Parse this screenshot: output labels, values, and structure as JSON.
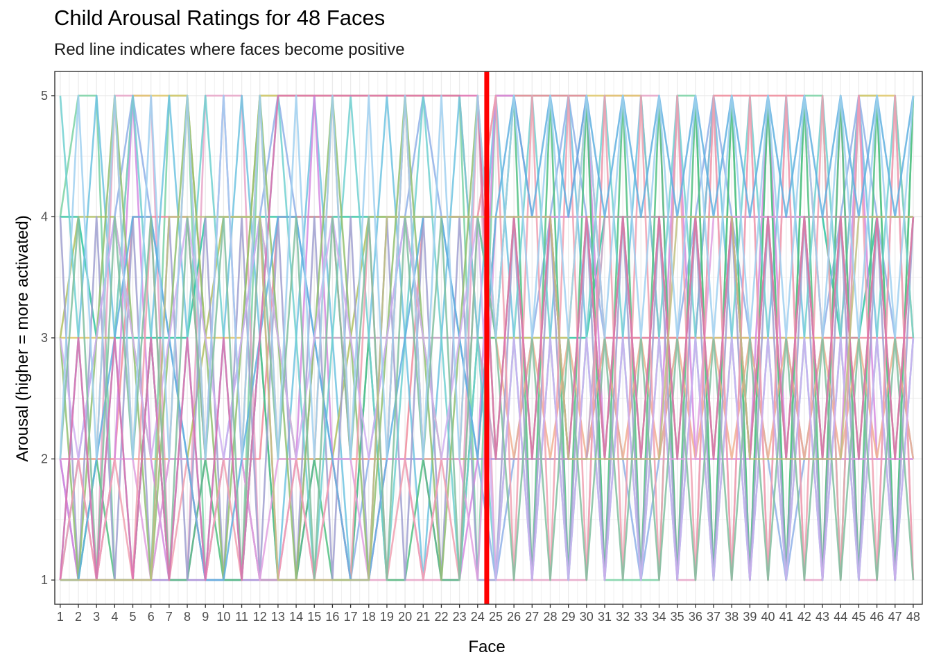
{
  "chart_data": {
    "type": "line",
    "title": "Child Arousal Ratings for 48 Faces",
    "subtitle": "Red line indicates where faces become positive",
    "xlabel": "Face",
    "ylabel": "Arousal (higher = more activated)",
    "x": [
      1,
      2,
      3,
      4,
      5,
      6,
      7,
      8,
      9,
      10,
      11,
      12,
      13,
      14,
      15,
      16,
      17,
      18,
      19,
      20,
      21,
      22,
      23,
      24,
      25,
      26,
      27,
      28,
      29,
      30,
      31,
      32,
      33,
      34,
      35,
      36,
      37,
      38,
      39,
      40,
      41,
      42,
      43,
      44,
      45,
      46,
      47,
      48
    ],
    "x_tick_labels": [
      "1",
      "2",
      "3",
      "4",
      "5",
      "6",
      "7",
      "8",
      "9",
      "10",
      "11",
      "12",
      "13",
      "14",
      "15",
      "16",
      "17",
      "18",
      "19",
      "20",
      "21",
      "22",
      "23",
      "24",
      "25",
      "26",
      "27",
      "28",
      "29",
      "30",
      "31",
      "32",
      "33",
      "34",
      "35",
      "36",
      "37",
      "38",
      "39",
      "40",
      "41",
      "42",
      "43",
      "44",
      "45",
      "46",
      "47",
      "48"
    ],
    "y_ticks": [
      1,
      2,
      3,
      4,
      5
    ],
    "xlim": [
      0.7,
      48.5
    ],
    "ylim": [
      0.8,
      5.2
    ],
    "grid": true,
    "legend": "none",
    "reference_line": {
      "x": 24.5,
      "color": "#ff0000"
    },
    "series_colors": [
      "#7ad2a5",
      "#e8a5c8",
      "#2ec4a0",
      "#a58ad6",
      "#e0c86a",
      "#8fb0e8",
      "#f08a9a",
      "#6ec3e0",
      "#b0c060",
      "#d58ae0",
      "#50c080",
      "#f0b090",
      "#a0a0d0",
      "#c0a0c0",
      "#70d0d0",
      "#e0a0e0",
      "#90c070",
      "#f0a0b0",
      "#60b0e0",
      "#d0b0f0",
      "#80c0a0",
      "#e070b0",
      "#c0c080",
      "#a0d0f0"
    ],
    "series": [
      {
        "values": [
          4,
          5,
          5,
          1,
          1,
          1,
          5,
          5,
          1,
          1,
          1,
          5,
          5,
          5,
          5,
          5,
          5,
          5,
          5,
          5,
          5,
          5,
          5,
          1,
          5,
          5,
          5,
          5,
          5,
          5,
          1,
          1,
          1,
          1,
          5,
          5,
          1,
          5,
          1,
          5,
          1,
          5,
          5,
          1,
          5,
          5,
          1,
          5
        ]
      },
      {
        "values": [
          1,
          1,
          1,
          5,
          5,
          5,
          1,
          1,
          5,
          5,
          5,
          1,
          1,
          1,
          1,
          1,
          1,
          1,
          1,
          1,
          1,
          1,
          1,
          5,
          1,
          1,
          1,
          1,
          1,
          1,
          5,
          5,
          5,
          5,
          1,
          1,
          5,
          1,
          5,
          1,
          5,
          1,
          1,
          5,
          1,
          1,
          5,
          1
        ]
      },
      {
        "values": [
          4,
          4,
          3,
          3,
          3,
          3,
          3,
          3,
          4,
          4,
          4,
          4,
          4,
          4,
          4,
          4,
          4,
          4,
          4,
          4,
          4,
          4,
          4,
          4,
          3,
          3,
          3,
          3,
          3,
          3,
          4,
          4,
          4,
          4,
          4,
          4,
          4,
          4,
          4,
          4,
          4,
          4,
          4,
          3,
          3,
          4,
          4,
          4
        ]
      },
      {
        "values": [
          2,
          1,
          1,
          1,
          1,
          1,
          1,
          1,
          1,
          1,
          1,
          1,
          1,
          1,
          2,
          2,
          2,
          2,
          2,
          2,
          2,
          2,
          2,
          2,
          2,
          2,
          2,
          2,
          2,
          2,
          3,
          3,
          3,
          3,
          3,
          3,
          3,
          3,
          3,
          3,
          3,
          2,
          2,
          2,
          2,
          2,
          2,
          2
        ]
      },
      {
        "values": [
          3,
          3,
          3,
          3,
          5,
          5,
          5,
          5,
          3,
          3,
          3,
          5,
          5,
          5,
          5,
          5,
          5,
          5,
          5,
          5,
          5,
          5,
          5,
          3,
          3,
          3,
          3,
          3,
          3,
          5,
          5,
          5,
          5,
          3,
          3,
          3,
          3,
          3,
          3,
          3,
          3,
          3,
          3,
          3,
          5,
          5,
          5,
          3
        ]
      },
      {
        "values": [
          1,
          2,
          3,
          4,
          5,
          4,
          3,
          2,
          1,
          2,
          3,
          4,
          5,
          4,
          3,
          2,
          1,
          2,
          3,
          4,
          5,
          4,
          3,
          2,
          1,
          2,
          3,
          4,
          5,
          4,
          3,
          2,
          1,
          2,
          3,
          4,
          5,
          4,
          3,
          2,
          1,
          2,
          3,
          4,
          5,
          4,
          3,
          2
        ]
      },
      {
        "values": [
          2,
          2,
          2,
          2,
          4,
          4,
          4,
          4,
          2,
          2,
          2,
          2,
          4,
          4,
          4,
          4,
          2,
          2,
          2,
          2,
          4,
          4,
          4,
          4,
          5,
          5,
          5,
          5,
          5,
          5,
          3,
          3,
          3,
          3,
          3,
          3,
          5,
          5,
          5,
          5,
          5,
          5,
          3,
          3,
          3,
          3,
          3,
          3
        ]
      },
      {
        "values": [
          1,
          3,
          5,
          3,
          1,
          3,
          5,
          3,
          1,
          3,
          5,
          3,
          1,
          3,
          5,
          3,
          1,
          3,
          5,
          3,
          1,
          3,
          5,
          3,
          5,
          3,
          1,
          3,
          5,
          3,
          1,
          3,
          5,
          3,
          1,
          3,
          5,
          3,
          1,
          3,
          5,
          3,
          1,
          3,
          5,
          3,
          1,
          3
        ]
      },
      {
        "values": [
          3,
          4,
          4,
          4,
          3,
          2,
          2,
          2,
          3,
          4,
          4,
          4,
          3,
          2,
          2,
          2,
          3,
          4,
          4,
          4,
          3,
          2,
          2,
          2,
          4,
          4,
          4,
          4,
          4,
          4,
          4,
          4,
          4,
          4,
          4,
          4,
          4,
          4,
          4,
          4,
          4,
          4,
          4,
          4,
          4,
          4,
          4,
          4
        ]
      },
      {
        "values": [
          2,
          1,
          1,
          2,
          5,
          2,
          1,
          1,
          2,
          5,
          2,
          1,
          1,
          2,
          5,
          2,
          1,
          1,
          2,
          5,
          2,
          1,
          1,
          2,
          5,
          5,
          4,
          4,
          4,
          5,
          2,
          2,
          2,
          2,
          5,
          2,
          2,
          2,
          2,
          5,
          2,
          2,
          2,
          2,
          5,
          2,
          2,
          2
        ]
      },
      {
        "values": [
          1,
          1,
          2,
          1,
          1,
          3,
          1,
          1,
          2,
          1,
          1,
          3,
          1,
          1,
          2,
          1,
          1,
          3,
          1,
          1,
          2,
          1,
          1,
          3,
          3,
          5,
          1,
          5,
          1,
          5,
          1,
          5,
          1,
          5,
          1,
          5,
          1,
          5,
          1,
          5,
          1,
          5,
          1,
          5,
          1,
          5,
          1,
          5
        ]
      },
      {
        "values": [
          2,
          2,
          2,
          5,
          2,
          2,
          2,
          5,
          2,
          2,
          2,
          5,
          2,
          2,
          2,
          5,
          2,
          2,
          2,
          5,
          2,
          2,
          2,
          5,
          3,
          2,
          3,
          2,
          3,
          2,
          3,
          2,
          3,
          2,
          3,
          2,
          3,
          2,
          3,
          2,
          3,
          2,
          3,
          2,
          3,
          2,
          3,
          2
        ]
      },
      {
        "values": [
          4,
          1,
          4,
          1,
          4,
          1,
          4,
          1,
          4,
          1,
          4,
          1,
          4,
          1,
          4,
          1,
          4,
          1,
          4,
          1,
          4,
          1,
          4,
          1,
          1,
          4,
          1,
          4,
          1,
          4,
          1,
          4,
          1,
          4,
          1,
          4,
          1,
          4,
          1,
          4,
          1,
          4,
          1,
          4,
          1,
          4,
          1,
          4
        ]
      },
      {
        "values": [
          1,
          1,
          1,
          1,
          1,
          1,
          2,
          2,
          2,
          2,
          2,
          1,
          1,
          1,
          3,
          3,
          3,
          3,
          3,
          3,
          3,
          3,
          3,
          3,
          2,
          2,
          2,
          2,
          2,
          2,
          4,
          4,
          4,
          4,
          4,
          4,
          4,
          4,
          4,
          4,
          4,
          4,
          4,
          4,
          4,
          4,
          4,
          4
        ]
      },
      {
        "values": [
          5,
          3,
          1,
          3,
          5,
          3,
          1,
          3,
          5,
          3,
          1,
          3,
          5,
          3,
          1,
          3,
          5,
          3,
          1,
          3,
          5,
          3,
          1,
          3,
          1,
          3,
          5,
          3,
          1,
          3,
          5,
          3,
          1,
          3,
          5,
          3,
          1,
          3,
          5,
          3,
          1,
          3,
          5,
          3,
          1,
          3,
          5,
          3
        ]
      },
      {
        "values": [
          2,
          2,
          1,
          2,
          2,
          1,
          2,
          2,
          1,
          2,
          2,
          1,
          2,
          2,
          1,
          2,
          2,
          1,
          2,
          2,
          1,
          2,
          2,
          1,
          4,
          4,
          4,
          4,
          4,
          4,
          2,
          2,
          2,
          2,
          2,
          2,
          4,
          4,
          4,
          4,
          4,
          4,
          2,
          2,
          2,
          2,
          2,
          2
        ]
      },
      {
        "values": [
          3,
          1,
          3,
          5,
          3,
          1,
          3,
          5,
          3,
          1,
          3,
          5,
          3,
          1,
          3,
          5,
          3,
          1,
          3,
          5,
          3,
          1,
          3,
          5,
          2,
          4,
          2,
          4,
          2,
          4,
          2,
          4,
          2,
          4,
          2,
          4,
          2,
          4,
          2,
          4,
          2,
          4,
          2,
          4,
          2,
          4,
          2,
          4
        ]
      },
      {
        "values": [
          1,
          2,
          1,
          2,
          1,
          4,
          1,
          2,
          1,
          2,
          1,
          4,
          1,
          2,
          1,
          2,
          1,
          4,
          1,
          2,
          1,
          2,
          1,
          4,
          5,
          1,
          5,
          1,
          5,
          1,
          5,
          1,
          5,
          1,
          5,
          1,
          5,
          1,
          5,
          1,
          5,
          1,
          5,
          1,
          5,
          1,
          5,
          1
        ]
      },
      {
        "values": [
          1,
          1,
          2,
          3,
          4,
          4,
          3,
          2,
          1,
          1,
          2,
          3,
          4,
          4,
          3,
          2,
          1,
          1,
          2,
          3,
          4,
          4,
          3,
          2,
          4,
          5,
          4,
          5,
          4,
          5,
          4,
          5,
          4,
          5,
          4,
          5,
          4,
          5,
          4,
          5,
          4,
          5,
          4,
          5,
          4,
          5,
          4,
          5
        ]
      },
      {
        "values": [
          3,
          2,
          3,
          4,
          3,
          2,
          3,
          4,
          3,
          2,
          3,
          4,
          3,
          2,
          3,
          4,
          3,
          2,
          3,
          4,
          3,
          2,
          3,
          4,
          1,
          3,
          1,
          3,
          1,
          3,
          1,
          3,
          1,
          3,
          1,
          3,
          1,
          3,
          1,
          3,
          1,
          3,
          1,
          3,
          1,
          3,
          1,
          3
        ]
      },
      {
        "values": [
          2,
          4,
          1,
          4,
          2,
          4,
          1,
          4,
          2,
          4,
          1,
          4,
          2,
          4,
          1,
          4,
          2,
          4,
          1,
          4,
          2,
          4,
          1,
          4,
          3,
          1,
          3,
          1,
          3,
          1,
          3,
          1,
          3,
          1,
          3,
          1,
          3,
          1,
          3,
          1,
          3,
          1,
          3,
          1,
          3,
          1,
          3,
          1
        ]
      },
      {
        "values": [
          1,
          3,
          1,
          3,
          1,
          3,
          1,
          3,
          1,
          3,
          1,
          3,
          5,
          5,
          5,
          5,
          5,
          5,
          5,
          5,
          5,
          5,
          5,
          5,
          2,
          4,
          2,
          4,
          2,
          4,
          2,
          4,
          2,
          4,
          2,
          4,
          2,
          4,
          2,
          4,
          2,
          4,
          2,
          4,
          2,
          4,
          2,
          4
        ]
      },
      {
        "values": [
          1,
          1,
          1,
          1,
          1,
          1,
          4,
          4,
          4,
          4,
          4,
          4,
          1,
          1,
          1,
          1,
          1,
          1,
          4,
          4,
          4,
          4,
          4,
          4,
          4,
          4,
          4,
          4,
          2,
          2,
          2,
          2,
          2,
          2,
          4,
          4,
          4,
          4,
          2,
          2,
          2,
          2,
          2,
          2,
          4,
          4,
          4,
          4
        ]
      },
      {
        "values": [
          2,
          5,
          2,
          5,
          2,
          5,
          2,
          5,
          2,
          5,
          2,
          5,
          2,
          5,
          2,
          5,
          2,
          5,
          2,
          5,
          2,
          5,
          2,
          5,
          3,
          5,
          3,
          5,
          3,
          5,
          3,
          5,
          3,
          5,
          3,
          5,
          3,
          5,
          3,
          5,
          3,
          5,
          3,
          5,
          3,
          5,
          3,
          5
        ]
      }
    ]
  }
}
